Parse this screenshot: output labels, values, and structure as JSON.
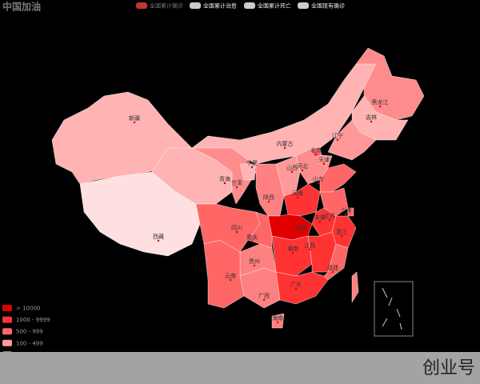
{
  "title": "中国加油",
  "legend_series": [
    {
      "name": "全国累计确诊",
      "color": "#c23531",
      "text_color": "#777"
    },
    {
      "name": "全国累计治愈",
      "color": "#cccccc",
      "text_color": "#eee"
    },
    {
      "name": "全国累计死亡",
      "color": "#cccccc",
      "text_color": "#eee"
    },
    {
      "name": "全国现有确诊",
      "color": "#cccccc",
      "text_color": "#eee"
    }
  ],
  "pieces": [
    {
      "label": "> 10000",
      "color": "#e00000"
    },
    {
      "label": "1000 - 9999",
      "color": "#ff3333"
    },
    {
      "label": "500 - 999",
      "color": "#ff6666"
    },
    {
      "label": "100 - 499",
      "color": "#ff9999"
    },
    {
      "color": "#ffcccc"
    },
    {
      "color": "#ffe6e6"
    },
    {
      "color": "#ffffff"
    }
  ],
  "provinces": [
    {
      "name": "新疆",
      "color": "#ffb3b3"
    },
    {
      "name": "西藏",
      "color": "#ffe0e0"
    },
    {
      "name": "青海",
      "color": "#ffb3b3"
    },
    {
      "name": "甘肃",
      "color": "#ff8c8c"
    },
    {
      "name": "内蒙古",
      "color": "#ffb3b3"
    },
    {
      "name": "黑龙江",
      "color": "#ff8c8c"
    },
    {
      "name": "吉林",
      "color": "#ffb3b3"
    },
    {
      "name": "辽宁",
      "color": "#ff9999"
    },
    {
      "name": "河北",
      "color": "#ff8c8c"
    },
    {
      "name": "北京",
      "color": "#ff6666"
    },
    {
      "name": "天津",
      "color": "#ff8c8c"
    },
    {
      "name": "山西",
      "color": "#ff9999"
    },
    {
      "name": "宁夏",
      "color": "#ffb3b3"
    },
    {
      "name": "陕西",
      "color": "#ff8080"
    },
    {
      "name": "山东",
      "color": "#ff6666"
    },
    {
      "name": "河南",
      "color": "#ff3333"
    },
    {
      "name": "江苏",
      "color": "#ff6666"
    },
    {
      "name": "安徽",
      "color": "#ff3333"
    },
    {
      "name": "上海",
      "color": "#ff6666"
    },
    {
      "name": "浙江",
      "color": "#ff3333"
    },
    {
      "name": "湖北",
      "color": "#e00000"
    },
    {
      "name": "湖南",
      "color": "#ff3333"
    },
    {
      "name": "江西",
      "color": "#ff3333"
    },
    {
      "name": "福建",
      "color": "#ff6666"
    },
    {
      "name": "广东",
      "color": "#ff3333"
    },
    {
      "name": "广西",
      "color": "#ff8080"
    },
    {
      "name": "海南",
      "color": "#ff8080"
    },
    {
      "name": "贵州",
      "color": "#ff8080"
    },
    {
      "name": "云南",
      "color": "#ff6666"
    },
    {
      "name": "四川",
      "color": "#ff6666"
    },
    {
      "name": "重庆",
      "color": "#ff6666"
    },
    {
      "color": "#ff8080"
    }
  ],
  "watermark": "创业号"
}
